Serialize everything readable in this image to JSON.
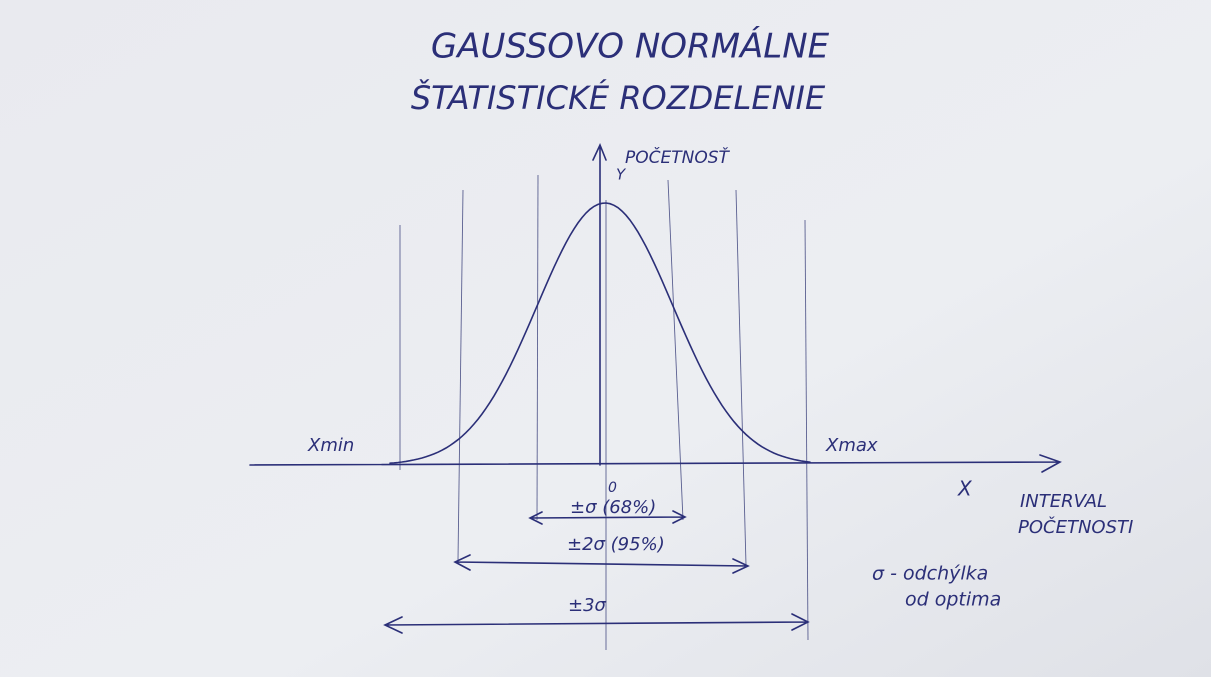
{
  "title": {
    "lines": [
      "GAUSSOVO NORMÁLNE",
      "ŠTATISTICKÉ ROZDELENIE"
    ]
  },
  "axes": {
    "y_label": "POČETNOSŤ",
    "y_symbol": "Y",
    "x_symbol": "X",
    "x_min": "Xmin",
    "x_max": "Xmax",
    "x_label": [
      "INTERVAL",
      "POČETNOSTI"
    ],
    "center": "0"
  },
  "intervals": [
    "±σ (68%)",
    "±2σ (95%)",
    "±3σ"
  ],
  "legend": [
    "σ - odchýlka",
    "od optima"
  ]
}
